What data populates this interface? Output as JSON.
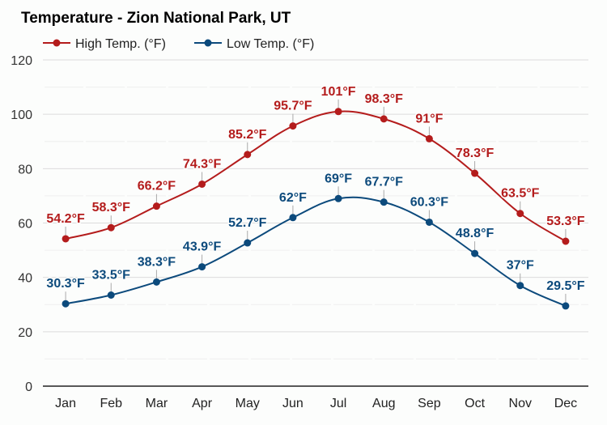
{
  "chart_data": {
    "type": "line",
    "title": "Temperature - Zion National Park, UT",
    "xlabel": "",
    "ylabel": "",
    "ylim": [
      0,
      120
    ],
    "yticks": [
      0,
      20,
      40,
      60,
      80,
      100,
      120
    ],
    "grid": true,
    "legend_position": "top-left",
    "categories": [
      "Jan",
      "Feb",
      "Mar",
      "Apr",
      "May",
      "Jun",
      "Jul",
      "Aug",
      "Sep",
      "Oct",
      "Nov",
      "Dec"
    ],
    "series": [
      {
        "name": "High Temp. (°F)",
        "color": "#b41c1c",
        "values": [
          54.2,
          58.3,
          66.2,
          74.3,
          85.2,
          95.7,
          101,
          98.3,
          91,
          78.3,
          63.5,
          53.3
        ],
        "labels": [
          "54.2°F",
          "58.3°F",
          "66.2°F",
          "74.3°F",
          "85.2°F",
          "95.7°F",
          "101°F",
          "98.3°F",
          "91°F",
          "78.3°F",
          "63.5°F",
          "53.3°F"
        ]
      },
      {
        "name": "Low Temp. (°F)",
        "color": "#0c4a7c",
        "values": [
          30.3,
          33.5,
          38.3,
          43.9,
          52.7,
          62,
          69,
          67.7,
          60.3,
          48.8,
          37,
          29.5
        ],
        "labels": [
          "30.3°F",
          "33.5°F",
          "38.3°F",
          "43.9°F",
          "52.7°F",
          "62°F",
          "69°F",
          "67.7°F",
          "60.3°F",
          "48.8°F",
          "37°F",
          "29.5°F"
        ]
      }
    ]
  }
}
